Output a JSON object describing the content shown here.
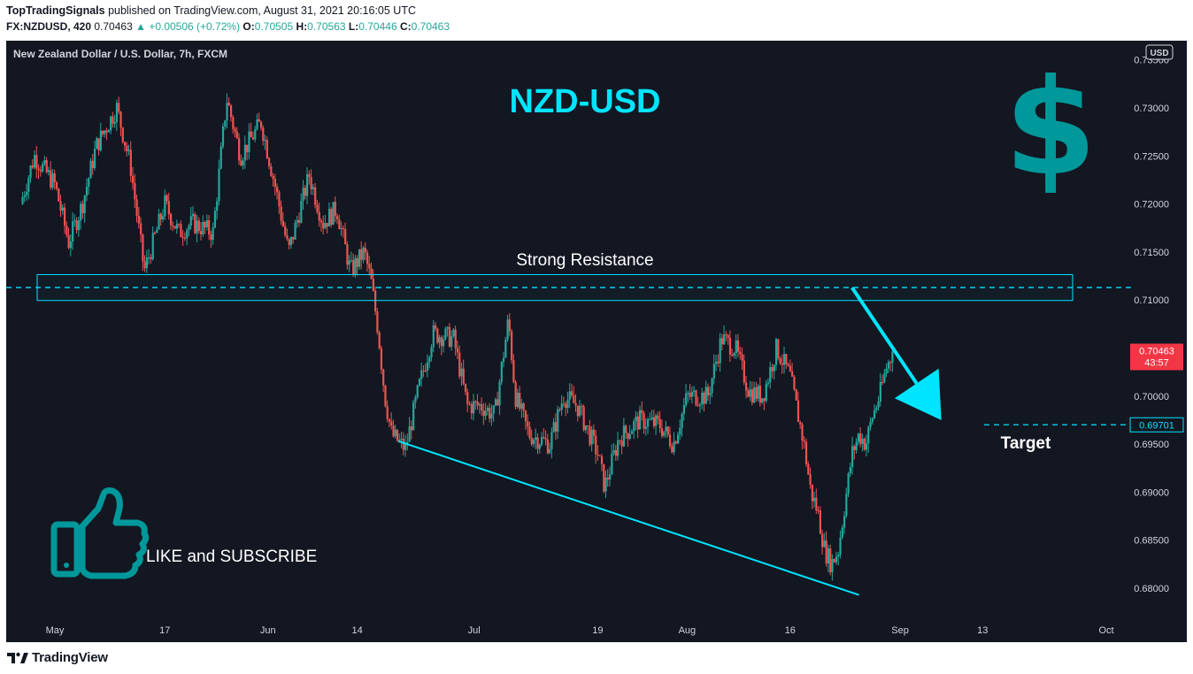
{
  "header": {
    "publisher": "TopTradingSignals",
    "published_text": " published on TradingView.com, August 31, 2021 20:16:05 UTC",
    "symbol": "FX:NZDUSD, 420",
    "last": "0.70463",
    "change": "▲ +0.00506 (+0.72%)",
    "o_label": "O:",
    "o_value": "0.70505",
    "h_label": "H:",
    "h_value": "0.70563",
    "l_label": "L:",
    "l_value": "0.70446",
    "c_label": "C:",
    "c_value": "0.70463"
  },
  "footer": {
    "brand": "TradingView"
  },
  "colors": {
    "background": "#131722",
    "up": "#26a69a",
    "down": "#ef5350",
    "annotation": "#00e5ff",
    "dollar": "#00989a",
    "thumb": "#00989a",
    "price_tag": "#f23645"
  },
  "chart_data": {
    "type": "candlestick",
    "title": "New Zealand Dollar / U.S. Dollar, 7h, FXCM",
    "currency_label": "USD",
    "x_tick_labels": [
      "May",
      "17",
      "Jun",
      "14",
      "Jul",
      "19",
      "Aug",
      "16",
      "Sep",
      "13",
      "Oct"
    ],
    "y_ticks": [
      "0.73500",
      "0.73000",
      "0.72500",
      "0.72000",
      "0.71500",
      "0.71000",
      "0.70500",
      "0.70000",
      "0.69500",
      "0.69000",
      "0.68500",
      "0.68000"
    ],
    "ylim": [
      0.6775,
      0.7355
    ],
    "last_price": 0.70463,
    "last_price_label": "0.70463",
    "countdown_label": "43:57",
    "target_price": 0.69701,
    "target_price_label": "0.69701",
    "resistance_level": 0.7113,
    "resistance_zone": [
      0.70995,
      0.71265
    ],
    "support_trendline": [
      {
        "date": "2021-06-20",
        "price": 0.6953
      },
      {
        "date": "2021-08-26",
        "price": 0.6793
      }
    ],
    "arrow": {
      "from": {
        "date": "2021-08-25",
        "price": 0.7113
      },
      "to": {
        "date": "2021-09-07",
        "price": 0.6975
      }
    },
    "annotations": {
      "pair_title": "NZD-USD",
      "resistance_label": "Strong Resistance",
      "target_label": "Target",
      "cta": "LIKE and SUBSCRIBE",
      "dollar_sign": "$"
    },
    "icons": [
      "dollar-sign-icon",
      "thumbs-up-icon",
      "tradingview-logo-icon"
    ],
    "price_path": [
      [
        "2021-04-26",
        0.72
      ],
      [
        "2021-04-28",
        0.725
      ],
      [
        "2021-05-01",
        0.722
      ],
      [
        "2021-05-03",
        0.716
      ],
      [
        "2021-05-05",
        0.72
      ],
      [
        "2021-05-07",
        0.726
      ],
      [
        "2021-05-10",
        0.73
      ],
      [
        "2021-05-12",
        0.724
      ],
      [
        "2021-05-14",
        0.713
      ],
      [
        "2021-05-17",
        0.72
      ],
      [
        "2021-05-19",
        0.717
      ],
      [
        "2021-05-21",
        0.718
      ],
      [
        "2021-05-24",
        0.717
      ],
      [
        "2021-05-26",
        0.731
      ],
      [
        "2021-05-28",
        0.725
      ],
      [
        "2021-05-31",
        0.7285
      ],
      [
        "2021-06-02",
        0.722
      ],
      [
        "2021-06-04",
        0.715
      ],
      [
        "2021-06-07",
        0.723
      ],
      [
        "2021-06-09",
        0.718
      ],
      [
        "2021-06-11",
        0.7195
      ],
      [
        "2021-06-13",
        0.713
      ],
      [
        "2021-06-15",
        0.715
      ],
      [
        "2021-06-16",
        0.712
      ],
      [
        "2021-06-17",
        0.707
      ],
      [
        "2021-06-18",
        0.7
      ],
      [
        "2021-06-19",
        0.696
      ],
      [
        "2021-06-21",
        0.6945
      ],
      [
        "2021-06-23",
        0.701
      ],
      [
        "2021-06-25",
        0.7065
      ],
      [
        "2021-06-28",
        0.706
      ],
      [
        "2021-06-30",
        0.699
      ],
      [
        "2021-07-02",
        0.699
      ],
      [
        "2021-07-04",
        0.698
      ],
      [
        "2021-07-06",
        0.708
      ],
      [
        "2021-07-07",
        0.7
      ],
      [
        "2021-07-09",
        0.696
      ],
      [
        "2021-07-12",
        0.695
      ],
      [
        "2021-07-14",
        0.7
      ],
      [
        "2021-07-16",
        0.699
      ],
      [
        "2021-07-19",
        0.694
      ],
      [
        "2021-07-20",
        0.6905
      ],
      [
        "2021-07-22",
        0.6955
      ],
      [
        "2021-07-25",
        0.6975
      ],
      [
        "2021-07-28",
        0.697
      ],
      [
        "2021-07-30",
        0.695
      ],
      [
        "2021-08-01",
        0.7
      ],
      [
        "2021-08-04",
        0.7
      ],
      [
        "2021-08-06",
        0.706
      ],
      [
        "2021-08-08",
        0.705
      ],
      [
        "2021-08-10",
        0.7005
      ],
      [
        "2021-08-12",
        0.7
      ],
      [
        "2021-08-14",
        0.705
      ],
      [
        "2021-08-16",
        0.702
      ],
      [
        "2021-08-18",
        0.695
      ],
      [
        "2021-08-19",
        0.69
      ],
      [
        "2021-08-20",
        0.688
      ],
      [
        "2021-08-21",
        0.684
      ],
      [
        "2021-08-22",
        0.6825
      ],
      [
        "2021-08-23",
        0.684
      ],
      [
        "2021-08-24",
        0.689
      ],
      [
        "2021-08-25",
        0.694
      ],
      [
        "2021-08-26",
        0.696
      ],
      [
        "2021-08-27",
        0.695
      ],
      [
        "2021-08-28",
        0.698
      ],
      [
        "2021-08-29",
        0.7
      ],
      [
        "2021-08-30",
        0.703
      ],
      [
        "2021-08-31",
        0.70463
      ]
    ]
  }
}
